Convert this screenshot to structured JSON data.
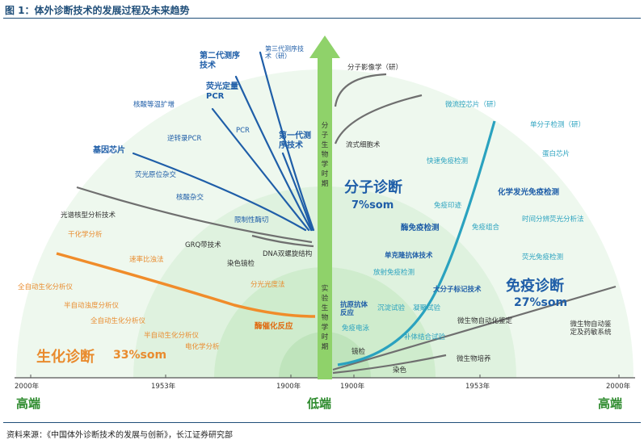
{
  "title": "图 1：体外诊断技术的发展过程及未来趋势",
  "source": "资料来源：《中国体外诊断技术的发展与创新》，长江证券研究部",
  "colors": {
    "title_blue": "#1f4e79",
    "arrow_green": "#8fd26a",
    "bg_green_light": "#eef8ee",
    "bg_green_mid": "#dff2df",
    "bg_green_deep": "#c9e9c6",
    "molecular_blue": "#1f5ea8",
    "immuno_teal": "#2aa2bf",
    "biochem_orange": "#f08c2a",
    "gray_line": "#707070",
    "end_green": "#2e8b2e"
  },
  "center_arrow": {
    "top_label": "分子生物学时期",
    "bottom_label": "实验生物学时期"
  },
  "axis": {
    "left_ticks": [
      "2000年",
      "1953年",
      "1900年"
    ],
    "right_ticks": [
      "1900年",
      "1953年",
      "2000年"
    ],
    "left_end": "高端",
    "center": "低端",
    "right_end": "高端"
  },
  "domains": {
    "molecular": {
      "name": "分子诊断",
      "share": "7%som"
    },
    "immuno": {
      "name": "免疫诊断",
      "share": "27%som"
    },
    "biochem": {
      "name": "生化诊断",
      "share": "33%som"
    }
  },
  "labels": {
    "gen3": "第三代测序技术（研）",
    "gen2": "第二代测序技术",
    "qpcr": "荧光定量PCR",
    "lamp": "核酸等温扩增",
    "pcr": "PCR",
    "gen1": "第一代测序技术",
    "rtpcr": "逆转录PCR",
    "chip": "基因芯片",
    "fish": "荧光原位杂交",
    "hybrid": "核酸杂交",
    "spectral": "光谱核型分析技术",
    "restriction": "限制性酶切",
    "grq": "GRQ带技术",
    "dna": "DNA双螺旋结构",
    "stain": "染色镜检",
    "imaging": "分子影像学（研）",
    "flow": "流式细胞术",
    "microfluidic": "微流控芯片（研）",
    "single_mol": "单分子检测（研）",
    "protein_chip": "蛋白芯片",
    "fast_immuno": "快速免疫检测",
    "chemi": "化学发光免疫检测",
    "immuno_print": "免疫印迹",
    "trf": "时间分辨荧光分析法",
    "enzyme": "酶免疫检测",
    "immuno_combo": "免疫组合",
    "fluor_immuno": "荧光免疫检测",
    "mab": "单克隆抗体技术",
    "ria": "放射免疫检测",
    "macro_label": "大分子标记技术",
    "dry_chem": "干化学分析",
    "rate_turb": "速率比浊法",
    "auto_analyzer": "全自动生化分析仪",
    "semi_turb": "半自动浊度分析仪",
    "auto_analyzer2": "全自动生化分析仪",
    "semi_analyzer": "半自动生化分析仪",
    "electrolyte": "电化学分析",
    "spectro": "分光光度法",
    "enzyme_rx": "酶催化反应",
    "antigen": "抗原抗体反应",
    "precip": "沉淀试验",
    "agglut": "凝聚试验",
    "immuno_ep": "免疫电泳",
    "complement": "补体结合试验",
    "micro_auto": "微生物自动化鉴定",
    "micro_auto2": "微生物自动鉴定及药敏系统",
    "microscope": "镜检",
    "micro_culture": "微生物培养",
    "dye": "染色"
  }
}
